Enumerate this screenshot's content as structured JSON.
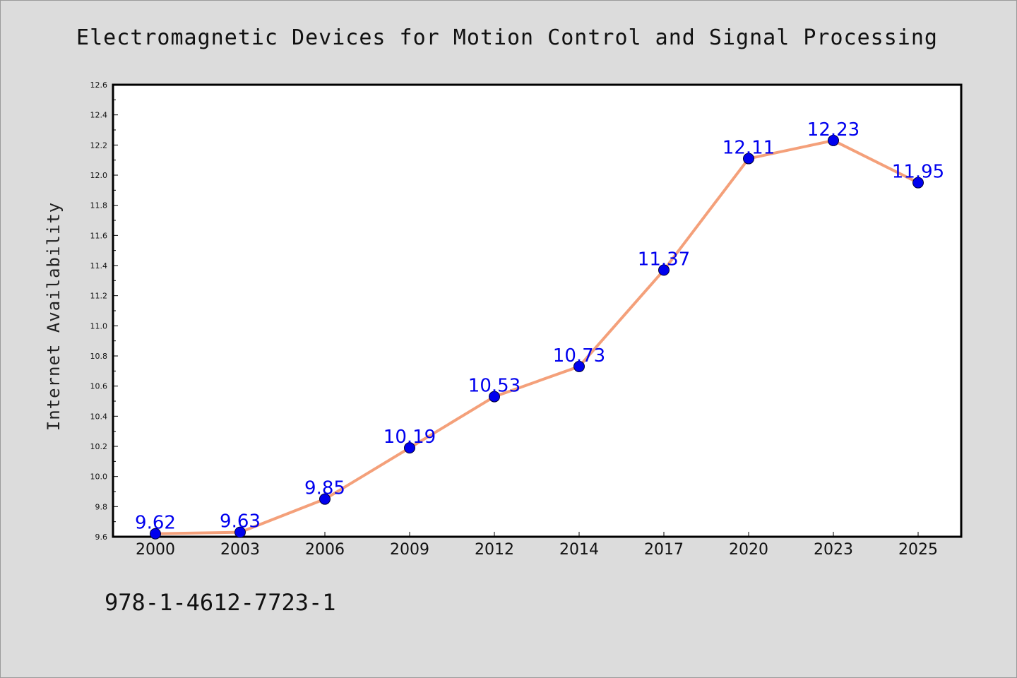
{
  "chart_data": {
    "type": "line",
    "title": "Electromagnetic Devices for Motion Control and Signal Processing",
    "xlabel": "",
    "ylabel": "Internet Availability",
    "categories": [
      "2000",
      "2003",
      "2006",
      "2009",
      "2012",
      "2014",
      "2017",
      "2020",
      "2023",
      "2025"
    ],
    "series": [
      {
        "values": [
          9.62,
          9.63,
          9.85,
          10.19,
          10.53,
          10.73,
          11.37,
          12.11,
          12.23,
          11.95
        ],
        "data_labels": [
          "9.62",
          "9.63",
          "9.85",
          "10.19",
          "10.53",
          "10.73",
          "11.37",
          "12.11",
          "12.23",
          "11.95"
        ],
        "line_color": "#f4a07a",
        "marker_color": "#0000ee"
      }
    ],
    "ylim": [
      9.6,
      12.6
    ],
    "yticks": [
      "9.6",
      "9.8",
      "10.0",
      "10.2",
      "10.4",
      "10.6",
      "10.8",
      "11.0",
      "11.2",
      "11.4",
      "11.6",
      "11.8",
      "12.0",
      "12.2",
      "12.4",
      "12.6"
    ],
    "grid": false,
    "legend": "none"
  },
  "footer": {
    "isbn": "978-1-4612-7723-1"
  }
}
